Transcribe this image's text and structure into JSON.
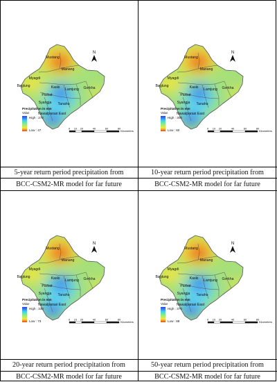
{
  "panels": [
    {
      "legend": {
        "title": "Precipitation in mm",
        "sub": "Value",
        "high": "High : 272",
        "low": "Low : 47"
      },
      "caption": {
        "line1": "5-year return period precipitation from",
        "line2": "BCC-CSM2-MR model for far future"
      }
    },
    {
      "legend": {
        "title": "Precipitation in mm",
        "sub": "Value",
        "high": "High : 300",
        "low": "Low : 60"
      },
      "caption": {
        "line1": "10-year return period precipitation from",
        "line2": "BCC-CSM2-MR model for far future"
      }
    },
    {
      "legend": {
        "title": "Precipitation in mm",
        "sub": "Value",
        "high": "High : 330",
        "low": "Low : 73"
      },
      "caption": {
        "line1": "20-year return period precipitation from",
        "line2": "BCC-CSM2-MR model for far future"
      }
    },
    {
      "legend": {
        "title": "Precipitation in mm",
        "sub": "Value",
        "high": "High : 370",
        "low": "Low : 88"
      },
      "caption": {
        "line1": "50-year return period precipitation from",
        "line2": "BCC-CSM2-MR model for far future"
      }
    }
  ],
  "districts": [
    "Mustang",
    "Manang",
    "Myagdi",
    "Baglung",
    "Kaski",
    "Parbat",
    "Lamjung",
    "Gorkha",
    "Syangja",
    "Tanahu",
    "Nawalparasi East"
  ],
  "north": "N",
  "scale": {
    "ticks": [
      "0",
      "10",
      "20",
      "40",
      "60",
      "80"
    ],
    "unit": "Kilometers"
  },
  "colors": {
    "high": "#2c3cf0",
    "mid": "#8ef07a",
    "low": "#e84a1e"
  }
}
